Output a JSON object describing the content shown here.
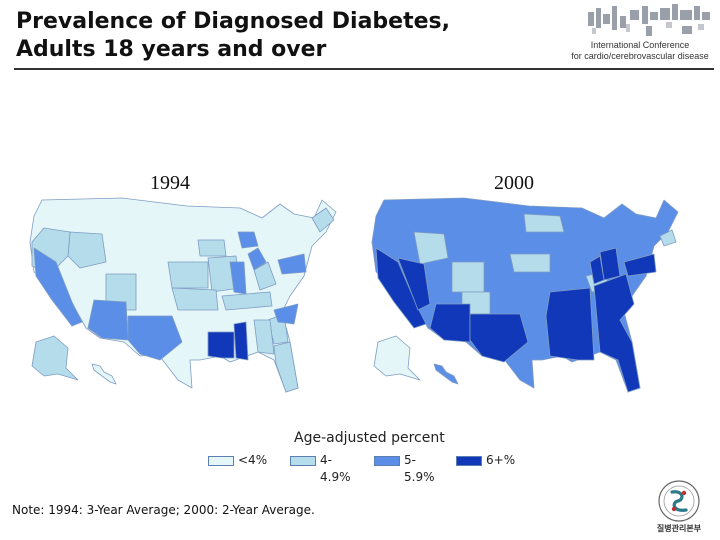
{
  "title": {
    "line1": "Prevalence of Diagnosed Diabetes,",
    "line2": "Adults 18 years and over"
  },
  "conference": {
    "line1": "International Conference",
    "line2": "for cardio/cerebrovascular disease"
  },
  "maps": [
    {
      "year": "1994"
    },
    {
      "year": "2000"
    }
  ],
  "legend": {
    "caption": "Age-adjusted percent",
    "items": [
      {
        "label": "<4%",
        "color": "#e4f6f8"
      },
      {
        "label": "4-\n4.9%",
        "color": "#b4dcea"
      },
      {
        "label": "5-\n5.9%",
        "color": "#5b8ee6"
      },
      {
        "label": "6+%",
        "color": "#1038b8"
      }
    ]
  },
  "note": "Note: 1994: 3-Year Average; 2000: 2-Year Average.",
  "logo_text": "질병관리본부"
}
